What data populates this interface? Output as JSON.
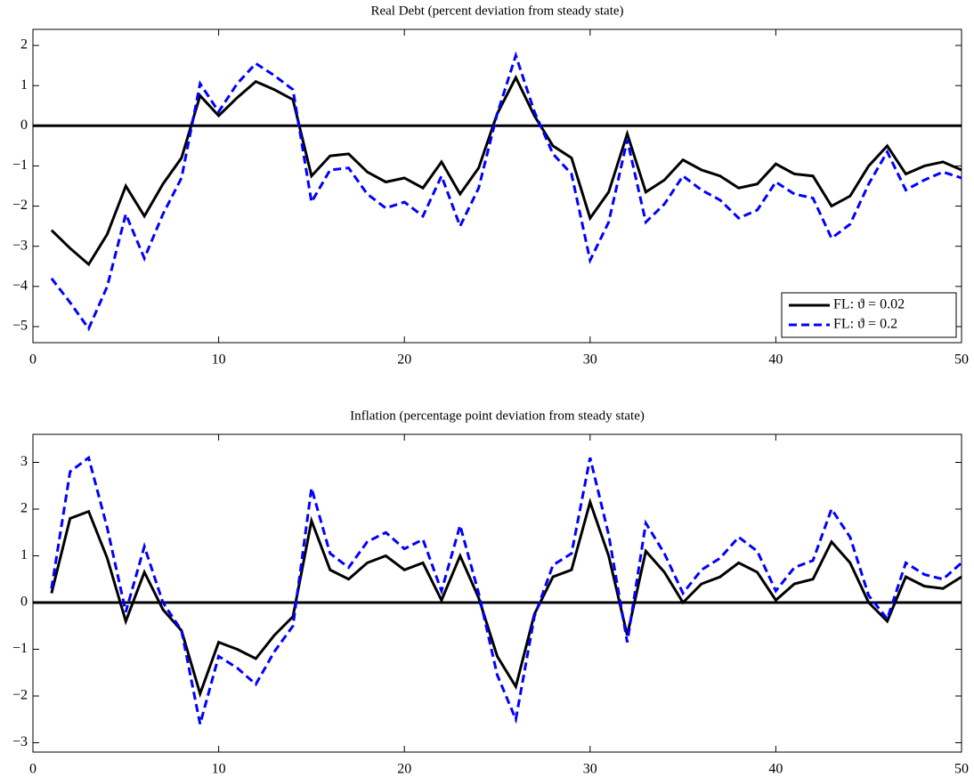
{
  "chart_data": [
    {
      "type": "line",
      "title": "Real Debt (percent deviation from steady state)",
      "x": [
        1,
        2,
        3,
        4,
        5,
        6,
        7,
        8,
        9,
        10,
        11,
        12,
        13,
        14,
        15,
        16,
        17,
        18,
        19,
        20,
        21,
        22,
        23,
        24,
        25,
        26,
        27,
        28,
        29,
        30,
        31,
        32,
        33,
        34,
        35,
        36,
        37,
        38,
        39,
        40,
        41,
        42,
        43,
        44,
        45,
        46,
        47,
        48,
        49,
        50
      ],
      "series": [
        {
          "name": "FL: ϑ = 0.02",
          "color": "#000000",
          "style": "solid",
          "values": [
            -2.6,
            -3.05,
            -3.45,
            -2.7,
            -1.5,
            -2.25,
            -1.45,
            -0.8,
            0.75,
            0.25,
            0.7,
            1.1,
            0.9,
            0.65,
            -1.25,
            -0.75,
            -0.7,
            -1.15,
            -1.4,
            -1.3,
            -1.55,
            -0.9,
            -1.7,
            -1.05,
            0.3,
            1.2,
            0.25,
            -0.5,
            -0.8,
            -2.3,
            -1.65,
            -0.2,
            -1.65,
            -1.35,
            -0.85,
            -1.1,
            -1.25,
            -1.55,
            -1.45,
            -0.95,
            -1.2,
            -1.25,
            -2.0,
            -1.75,
            -1.0,
            -0.5,
            -1.2,
            -1.0,
            -0.9,
            -1.1
          ]
        },
        {
          "name": "FL: ϑ = 0.2",
          "color": "#0000ff",
          "style": "dashed",
          "values": [
            -3.8,
            -4.4,
            -5.05,
            -4.0,
            -2.2,
            -3.3,
            -2.2,
            -1.3,
            1.05,
            0.35,
            1.05,
            1.55,
            1.25,
            0.9,
            -1.9,
            -1.1,
            -1.05,
            -1.7,
            -2.05,
            -1.9,
            -2.25,
            -1.25,
            -2.5,
            -1.55,
            0.3,
            1.75,
            0.35,
            -0.7,
            -1.2,
            -3.35,
            -2.4,
            -0.35,
            -2.4,
            -1.95,
            -1.25,
            -1.6,
            -1.85,
            -2.3,
            -2.1,
            -1.4,
            -1.7,
            -1.8,
            -2.8,
            -2.45,
            -1.45,
            -0.65,
            -1.6,
            -1.35,
            -1.15,
            -1.3
          ]
        }
      ],
      "xlim": [
        0,
        50
      ],
      "xticks": [
        0,
        10,
        20,
        30,
        40,
        50
      ],
      "ylim": [
        -5.4,
        2.4
      ],
      "yticks": [
        {
          "value": -5,
          "label": "−5"
        },
        {
          "value": -4,
          "label": "−4"
        },
        {
          "value": -3,
          "label": "−3"
        },
        {
          "value": -2,
          "label": "−2"
        },
        {
          "value": -1,
          "label": "−1"
        },
        0,
        1,
        2
      ],
      "hline": 0,
      "legend": "lower right",
      "grid": false
    },
    {
      "type": "line",
      "title": "Inflation (percentage point deviation from steady state)",
      "x": [
        1,
        2,
        3,
        4,
        5,
        6,
        7,
        8,
        9,
        10,
        11,
        12,
        13,
        14,
        15,
        16,
        17,
        18,
        19,
        20,
        21,
        22,
        23,
        24,
        25,
        26,
        27,
        28,
        29,
        30,
        31,
        32,
        33,
        34,
        35,
        36,
        37,
        38,
        39,
        40,
        41,
        42,
        43,
        44,
        45,
        46,
        47,
        48,
        49,
        50
      ],
      "series": [
        {
          "color": "#000000",
          "style": "solid",
          "values": [
            0.2,
            1.8,
            1.95,
            0.95,
            -0.4,
            0.65,
            -0.15,
            -0.6,
            -1.95,
            -0.85,
            -1.0,
            -1.2,
            -0.7,
            -0.3,
            1.75,
            0.7,
            0.5,
            0.85,
            1.0,
            0.7,
            0.85,
            0.05,
            1.0,
            0.1,
            -1.15,
            -1.8,
            -0.25,
            0.55,
            0.7,
            2.15,
            1.0,
            -0.7,
            1.1,
            0.65,
            0.0,
            0.4,
            0.55,
            0.85,
            0.65,
            0.05,
            0.4,
            0.5,
            1.3,
            0.85,
            0.0,
            -0.4,
            0.55,
            0.35,
            0.3,
            0.55
          ]
        },
        {
          "color": "#0000ff",
          "style": "dashed",
          "values": [
            0.3,
            2.8,
            3.1,
            1.6,
            -0.2,
            1.2,
            0.0,
            -0.6,
            -2.6,
            -1.15,
            -1.4,
            -1.75,
            -1.05,
            -0.5,
            2.45,
            1.05,
            0.75,
            1.3,
            1.5,
            1.15,
            1.35,
            0.25,
            1.65,
            0.2,
            -1.55,
            -2.5,
            -0.3,
            0.8,
            1.05,
            3.1,
            1.45,
            -0.85,
            1.7,
            1.05,
            0.2,
            0.7,
            0.95,
            1.4,
            1.1,
            0.25,
            0.75,
            0.9,
            2.0,
            1.4,
            0.15,
            -0.35,
            0.85,
            0.6,
            0.5,
            0.85
          ]
        }
      ],
      "xlim": [
        0,
        50
      ],
      "xticks": [
        0,
        10,
        20,
        30,
        40,
        50
      ],
      "ylim": [
        -3.2,
        3.6
      ],
      "yticks": [
        {
          "value": -3,
          "label": "−3"
        },
        {
          "value": -2,
          "label": "−2"
        },
        {
          "value": -1,
          "label": "−1"
        },
        0,
        1,
        2,
        3
      ],
      "hline": 0,
      "legend": false,
      "grid": false
    }
  ]
}
